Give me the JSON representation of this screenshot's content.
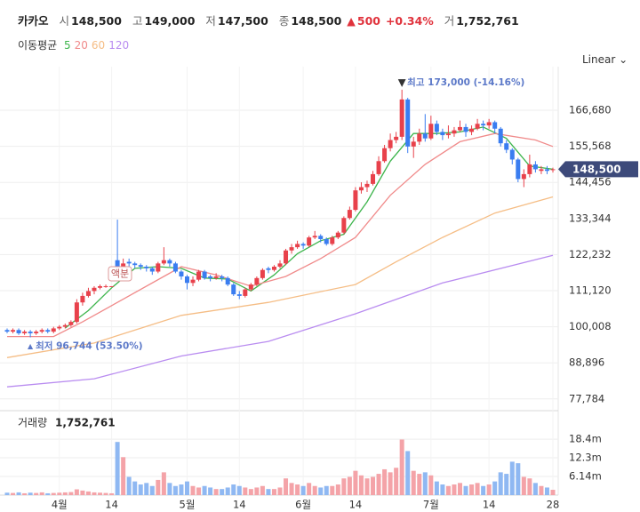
{
  "header": {
    "name": "카카오",
    "items": [
      {
        "label": "시",
        "value": "148,500"
      },
      {
        "label": "고",
        "value": "149,000"
      },
      {
        "label": "저",
        "value": "147,500"
      },
      {
        "label": "종",
        "value": "148,500"
      }
    ],
    "change": "500",
    "change_pct": "+0.34%",
    "volume_label": "거",
    "volume": "1,752,761"
  },
  "chart_data": {
    "type": "candlestick",
    "scale_mode": "Linear",
    "categories": [
      null,
      null,
      null,
      null,
      null,
      null,
      null,
      null,
      null,
      "4월",
      null,
      null,
      null,
      null,
      null,
      null,
      null,
      null,
      "14",
      null,
      null,
      null,
      null,
      null,
      null,
      null,
      null,
      null,
      null,
      null,
      null,
      "5월",
      null,
      null,
      null,
      null,
      null,
      null,
      null,
      null,
      "14",
      null,
      null,
      null,
      null,
      null,
      null,
      null,
      null,
      null,
      null,
      "6월",
      null,
      null,
      null,
      null,
      null,
      null,
      null,
      null,
      "14",
      null,
      null,
      null,
      null,
      null,
      null,
      null,
      null,
      null,
      null,
      null,
      null,
      "7월",
      null,
      null,
      null,
      null,
      null,
      null,
      null,
      null,
      null,
      "14",
      null,
      null,
      null,
      null,
      null,
      null,
      null,
      null,
      null,
      null,
      "28"
    ],
    "open": [
      99000,
      98500,
      99000,
      98000,
      98500,
      98000,
      98500,
      99000,
      98500,
      99500,
      100000,
      100500,
      101500,
      107500,
      109500,
      111000,
      112000,
      112500,
      112500,
      120500,
      118500,
      120000,
      119500,
      119000,
      118500,
      118000,
      117000,
      119500,
      120500,
      119500,
      117000,
      115500,
      113500,
      114500,
      117000,
      115500,
      115000,
      115500,
      115000,
      113000,
      110000,
      109500,
      111500,
      113000,
      115000,
      118000,
      117500,
      118500,
      119500,
      123500,
      124500,
      125500,
      125000,
      127500,
      128000,
      127000,
      125500,
      127500,
      129000,
      133500,
      136000,
      142000,
      143000,
      144000,
      147000,
      151000,
      155000,
      157500,
      158500,
      170000,
      155500,
      157000,
      159500,
      158000,
      162500,
      160000,
      159000,
      159500,
      160500,
      161500,
      160000,
      161000,
      162500,
      162000,
      163000,
      161000,
      156500,
      154500,
      151500,
      145500,
      147000,
      150000,
      148000,
      148500,
      148500
    ],
    "high": [
      99500,
      99500,
      99500,
      99000,
      99000,
      99000,
      99500,
      99500,
      100000,
      100500,
      101000,
      102000,
      108500,
      110500,
      112000,
      112500,
      113000,
      113000,
      112500,
      133000,
      121000,
      121000,
      120000,
      119500,
      119000,
      118500,
      120000,
      124500,
      121000,
      120000,
      117500,
      116000,
      115500,
      117500,
      117500,
      116000,
      116500,
      116000,
      115500,
      113500,
      111000,
      112000,
      113500,
      115500,
      118000,
      118500,
      119000,
      120500,
      124000,
      125500,
      126500,
      126000,
      128000,
      129500,
      128500,
      127500,
      128000,
      129500,
      134000,
      137000,
      143000,
      144500,
      145000,
      148000,
      152500,
      156000,
      159500,
      160000,
      173000,
      170500,
      158500,
      161000,
      165500,
      165000,
      163500,
      161000,
      162000,
      161500,
      163500,
      162500,
      162000,
      164000,
      163500,
      164000,
      163500,
      161500,
      157500,
      155000,
      152000,
      148500,
      153000,
      151000,
      149500,
      149500,
      149000
    ],
    "low": [
      98000,
      98000,
      97500,
      97500,
      96744,
      97500,
      98000,
      98000,
      98000,
      99000,
      99500,
      100000,
      101000,
      106500,
      109000,
      110000,
      111500,
      112000,
      112500,
      116500,
      117500,
      118500,
      118000,
      117500,
      117000,
      116000,
      116500,
      119000,
      118500,
      116500,
      114500,
      111500,
      112500,
      114000,
      114500,
      114000,
      114500,
      114000,
      112500,
      109500,
      108500,
      109000,
      111000,
      112500,
      114500,
      116500,
      117000,
      118000,
      119000,
      122500,
      124000,
      124000,
      124500,
      127000,
      126000,
      125000,
      125000,
      127000,
      128500,
      133000,
      135500,
      141000,
      141500,
      143500,
      146500,
      150500,
      154000,
      156500,
      157500,
      153500,
      152000,
      156000,
      157000,
      157500,
      159000,
      157500,
      158000,
      158500,
      160000,
      158500,
      159000,
      160500,
      160500,
      161000,
      159500,
      155500,
      153500,
      150000,
      144500,
      143000,
      146000,
      147500,
      147000,
      147000,
      147500
    ],
    "close": [
      98500,
      99000,
      98000,
      98500,
      98000,
      98500,
      99000,
      98500,
      99500,
      100000,
      100500,
      101500,
      107500,
      109500,
      111000,
      112000,
      112500,
      112500,
      112500,
      118500,
      119500,
      119500,
      119000,
      118500,
      118000,
      117000,
      119500,
      120500,
      119500,
      117000,
      115500,
      113500,
      114500,
      117000,
      115000,
      115000,
      115500,
      115000,
      113000,
      110000,
      109500,
      111500,
      113000,
      115000,
      117500,
      117500,
      118500,
      119500,
      123500,
      124500,
      125500,
      125000,
      127500,
      128000,
      127000,
      125500,
      127500,
      129000,
      133500,
      136000,
      142000,
      143000,
      144000,
      147000,
      151000,
      155000,
      157500,
      158500,
      170000,
      155500,
      157000,
      159500,
      158000,
      162500,
      160000,
      159000,
      159500,
      160500,
      161500,
      160000,
      161000,
      162500,
      162000,
      163000,
      161000,
      156500,
      154500,
      151500,
      145500,
      147000,
      150000,
      148500,
      148500,
      148000,
      148500
    ],
    "up_color": "#e8414b",
    "down_color": "#3a7df0",
    "ylim": [
      75264,
      180091
    ],
    "yticks": [
      {
        "value": 166680,
        "label": "166,680"
      },
      {
        "value": 155568,
        "label": "155,568"
      },
      {
        "value": 144456,
        "label": "144,456"
      },
      {
        "value": 133344,
        "label": "133,344"
      },
      {
        "value": 122232,
        "label": "122,232"
      },
      {
        "value": 111120,
        "label": "111,120"
      },
      {
        "value": 100008,
        "label": "100,008"
      },
      {
        "value": 88896,
        "label": "88,896"
      },
      {
        "value": 77784,
        "label": "77,784"
      }
    ],
    "grid": true,
    "ma_title": "이동평균",
    "moving_averages": [
      {
        "name": "5",
        "color": "#3cb44b",
        "x": [
          10,
          14,
          18,
          22,
          26,
          30,
          34,
          38,
          42,
          46,
          50,
          54,
          58,
          62,
          66,
          70,
          74,
          78,
          82,
          86,
          90,
          94
        ],
        "values": [
          99600,
          105000,
          112000,
          118000,
          118500,
          118000,
          115000,
          114700,
          111000,
          116000,
          122500,
          126500,
          128500,
          138500,
          151000,
          159500,
          159500,
          160000,
          161500,
          158000,
          149500,
          148500
        ]
      },
      {
        "name": "20",
        "color": "#f08a8a",
        "x": [
          0,
          8,
          13,
          19,
          30,
          36,
          42,
          48,
          54,
          60,
          66,
          72,
          78,
          84,
          91,
          94
        ],
        "values": [
          97000,
          97000,
          101500,
          107500,
          118500,
          116000,
          112500,
          115500,
          121000,
          127500,
          140500,
          150000,
          157000,
          159500,
          157500,
          155500
        ]
      },
      {
        "name": "60",
        "color": "#f5bd85",
        "x": [
          0,
          15,
          30,
          45,
          60,
          67,
          75,
          84,
          94
        ],
        "values": [
          90500,
          95000,
          103500,
          107500,
          113000,
          120000,
          127500,
          135000,
          140000
        ]
      },
      {
        "name": "120",
        "color": "#b98cf0",
        "x": [
          0,
          15,
          30,
          45,
          60,
          75,
          94
        ],
        "values": [
          81500,
          84000,
          91000,
          95500,
          104000,
          113500,
          122000
        ]
      }
    ],
    "last_price": {
      "value": 148500,
      "label": "148,500"
    },
    "high_note": "최고 173,000 (-14.16%)",
    "low_note": "최저 96,744 (53.50%)",
    "split_label": "액분",
    "volume": {
      "title": "거래량",
      "total": "1,752,761",
      "values": [
        800000,
        700000,
        900000,
        600000,
        800000,
        700000,
        900000,
        600000,
        700000,
        800000,
        900000,
        1000000,
        1900000,
        1500000,
        1200000,
        900000,
        800000,
        700000,
        600000,
        17500000,
        12500000,
        6000000,
        4500000,
        3500000,
        4000000,
        3000000,
        5000000,
        7500000,
        4000000,
        3000000,
        3500000,
        4500000,
        3000000,
        2500000,
        3000000,
        2500000,
        2000000,
        2000000,
        2500000,
        3500000,
        3000000,
        2500000,
        2000000,
        2500000,
        3000000,
        2000000,
        2000000,
        2500000,
        5500000,
        4000000,
        3500000,
        3000000,
        4000000,
        3000000,
        2500000,
        3000000,
        3000000,
        3500000,
        5500000,
        6000000,
        8000000,
        6500000,
        5500000,
        6000000,
        7000000,
        8500000,
        7500000,
        9000000,
        18300000,
        14500000,
        8000000,
        7000000,
        7500000,
        6500000,
        4500000,
        3500000,
        3000000,
        3500000,
        4000000,
        3000000,
        3500000,
        4000000,
        3000000,
        3500000,
        4500000,
        7500000,
        7000000,
        11000000,
        10500000,
        6000000,
        5500000,
        4000000,
        3000000,
        2500000,
        1752761
      ],
      "up_color": "#f4a3a8",
      "down_color": "#8fb8f2",
      "ylim": [
        0,
        27800000
      ],
      "yticks": [
        {
          "value": 6140000,
          "label": "6.14m"
        },
        {
          "value": 12300000,
          "label": "12.3m"
        },
        {
          "value": 18400000,
          "label": "18.4m"
        }
      ]
    }
  }
}
